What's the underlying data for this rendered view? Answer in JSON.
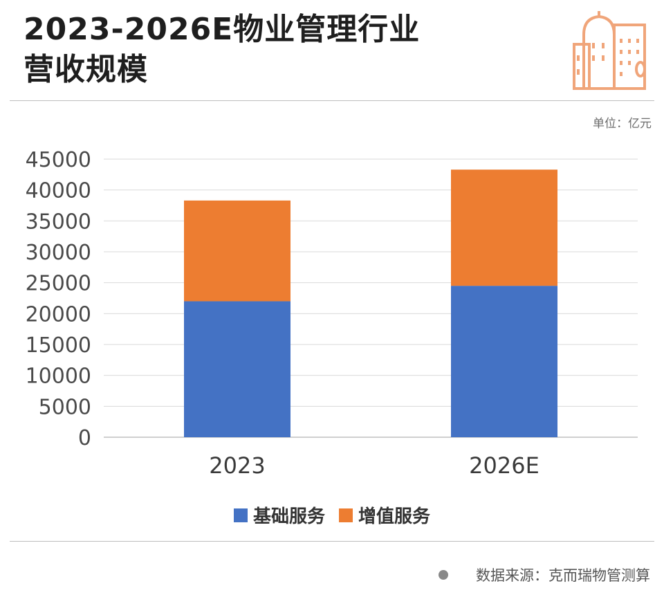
{
  "title_line1": "2023-2026E物业管理行业",
  "title_line2": "营收规模",
  "unit": "单位：亿元",
  "source": "数据来源：克而瑞物管测算",
  "colors": {
    "series1": "#4472C4",
    "series2": "#ED7D31",
    "icon": "#F0A57A"
  },
  "icon": "building-icon",
  "chart_data": {
    "type": "bar",
    "stacked": true,
    "categories": [
      "2023",
      "2026E"
    ],
    "series": [
      {
        "name": "基础服务",
        "values": [
          22000,
          24500
        ],
        "color": "#4472C4"
      },
      {
        "name": "增值服务",
        "values": [
          16300,
          18800
        ],
        "color": "#ED7D31"
      }
    ],
    "ylim": [
      0,
      45000
    ],
    "yticks": [
      "0",
      "5000",
      "10000",
      "15000",
      "20000",
      "25000",
      "30000",
      "35000",
      "40000",
      "45000"
    ],
    "grid": true,
    "legend": "bottom-center"
  }
}
